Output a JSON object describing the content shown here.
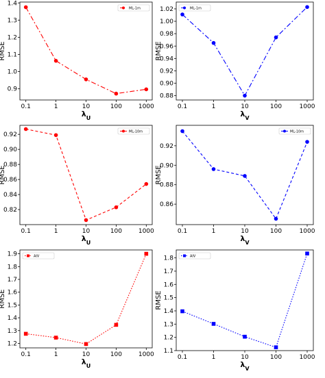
{
  "chart_data": [
    {
      "type": "line",
      "color": "#ff0000",
      "marker": "circle",
      "dash": "dashdot",
      "categories": [
        "0.1",
        "1",
        "10",
        "100",
        "1000"
      ],
      "series": [
        {
          "name": "ML-1m",
          "values": [
            1.375,
            1.063,
            0.955,
            0.872,
            0.897
          ]
        }
      ],
      "xlabel_main": "λ",
      "xlabel_sub": "U",
      "ylabel": "RMSE",
      "ylim": [
        0.835,
        1.405
      ],
      "yticks": [
        "0.9",
        "1.0",
        "1.1",
        "1.2",
        "1.3",
        "1.4"
      ],
      "ytick_values": [
        0.9,
        1.0,
        1.1,
        1.2,
        1.3,
        1.4
      ],
      "legend": "top-right"
    },
    {
      "type": "line",
      "color": "#0000ff",
      "marker": "circle",
      "dash": "dashdot",
      "categories": [
        "0.1",
        "1",
        "10",
        "100",
        "1000"
      ],
      "series": [
        {
          "name": "ML-1m",
          "values": [
            1.011,
            0.965,
            0.88,
            0.974,
            1.023
          ]
        }
      ],
      "xlabel_main": "λ",
      "xlabel_sub": "V",
      "ylabel": "RMSE",
      "ylim": [
        0.873,
        1.031
      ],
      "yticks": [
        "0.88",
        "0.90",
        "0.92",
        "0.94",
        "0.96",
        "0.98",
        "1.00",
        "1.02"
      ],
      "ytick_values": [
        0.88,
        0.9,
        0.92,
        0.94,
        0.96,
        0.98,
        1.0,
        1.02
      ],
      "legend": "top-left"
    },
    {
      "type": "line",
      "color": "#ff0000",
      "marker": "circle",
      "dash": "dashed",
      "categories": [
        "0.1",
        "1",
        "10",
        "100",
        "1000"
      ],
      "series": [
        {
          "name": "ML-10m",
          "values": [
            0.927,
            0.919,
            0.806,
            0.823,
            0.854
          ]
        }
      ],
      "xlabel_main": "λ",
      "xlabel_sub": "U",
      "ylabel": "RMSE",
      "ylim": [
        0.8,
        0.932
      ],
      "yticks": [
        "0.82",
        "0.84",
        "0.86",
        "0.88",
        "0.90",
        "0.92"
      ],
      "ytick_values": [
        0.82,
        0.84,
        0.86,
        0.88,
        0.9,
        0.92
      ],
      "legend": "top-right"
    },
    {
      "type": "line",
      "color": "#0000ff",
      "marker": "circle",
      "dash": "dashed",
      "categories": [
        "0.1",
        "1",
        "10",
        "100",
        "1000"
      ],
      "series": [
        {
          "name": "ML-10m",
          "values": [
            0.935,
            0.896,
            0.889,
            0.845,
            0.924
          ]
        }
      ],
      "xlabel_main": "λ",
      "xlabel_sub": "V",
      "ylabel": "RMSE",
      "ylim": [
        0.839,
        0.941
      ],
      "yticks": [
        "0.86",
        "0.88",
        "0.90",
        "0.92"
      ],
      "ytick_values": [
        0.86,
        0.88,
        0.9,
        0.92
      ],
      "legend": "top-right"
    },
    {
      "type": "line",
      "color": "#ff0000",
      "marker": "square",
      "dash": "dotted",
      "categories": [
        "0.1",
        "1",
        "10",
        "100",
        "1000"
      ],
      "series": [
        {
          "name": "AIV",
          "values": [
            1.275,
            1.245,
            1.195,
            1.345,
            1.9
          ]
        }
      ],
      "xlabel_main": "λ",
      "xlabel_sub": "U",
      "ylabel": "RMSE",
      "ylim": [
        1.165,
        1.93
      ],
      "yticks": [
        "1.2",
        "1.3",
        "1.4",
        "1.5",
        "1.6",
        "1.7",
        "1.8",
        "1.9"
      ],
      "ytick_values": [
        1.2,
        1.3,
        1.4,
        1.5,
        1.6,
        1.7,
        1.8,
        1.9
      ],
      "legend": "top-left"
    },
    {
      "type": "line",
      "color": "#0000ff",
      "marker": "square",
      "dash": "dotted",
      "categories": [
        "0.1",
        "1",
        "10",
        "100",
        "1000"
      ],
      "series": [
        {
          "name": "AIV",
          "values": [
            1.397,
            1.302,
            1.205,
            1.125,
            1.833
          ]
        }
      ],
      "xlabel_main": "λ",
      "xlabel_sub": "V",
      "ylabel": "RMSE",
      "ylim": [
        1.1,
        1.86
      ],
      "yticks": [
        "1.1",
        "1.2",
        "1.3",
        "1.4",
        "1.5",
        "1.6",
        "1.7",
        "1.8"
      ],
      "ytick_values": [
        1.1,
        1.2,
        1.3,
        1.4,
        1.5,
        1.6,
        1.7,
        1.8
      ],
      "legend": "top-left"
    }
  ]
}
